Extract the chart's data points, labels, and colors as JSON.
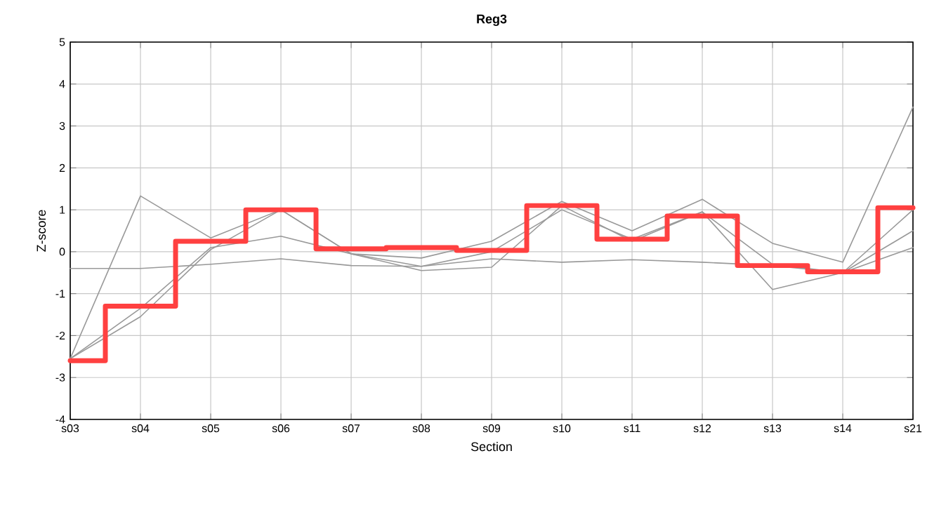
{
  "chart_data": {
    "type": "line",
    "title": "Reg3",
    "xlabel": "Section",
    "ylabel": "Z-score",
    "categories": [
      "s03",
      "s04",
      "s05",
      "s06",
      "s07",
      "s08",
      "s09",
      "s10",
      "s11",
      "s12",
      "s13",
      "s14",
      "s21"
    ],
    "ylim": [
      -4,
      5
    ],
    "yticks": [
      -4,
      -3,
      -2,
      -1,
      0,
      1,
      2,
      3,
      4,
      5
    ],
    "grid": true,
    "series": [
      {
        "color": "#999999",
        "values": [
          -0.4,
          -0.4,
          -0.3,
          -0.17,
          -0.33,
          -0.35,
          -0.17,
          -0.25,
          -0.19,
          -0.25,
          -0.33,
          -0.5,
          0.1
        ]
      },
      {
        "color": "#999999",
        "values": [
          -2.55,
          1.33,
          0.33,
          1.0,
          -0.05,
          -0.15,
          0.25,
          1.2,
          0.5,
          1.25,
          0.2,
          -0.25,
          3.45
        ]
      },
      {
        "color": "#999999",
        "values": [
          -2.55,
          -1.55,
          0.05,
          1.0,
          -0.05,
          -0.45,
          -0.37,
          1.1,
          0.25,
          0.95,
          -0.9,
          -0.5,
          0.5
        ]
      },
      {
        "color": "#999999",
        "values": [
          -2.55,
          -1.35,
          0.1,
          0.37,
          -0.05,
          -0.35,
          0.0,
          1.0,
          0.3,
          0.95,
          -0.3,
          -0.5,
          1.0
        ]
      },
      {
        "type": "step",
        "color": "#ff4040",
        "values": [
          -2.6,
          -1.3,
          0.25,
          1.0,
          0.07,
          0.1,
          0.03,
          1.1,
          0.3,
          0.85,
          -0.33,
          -0.48,
          1.05
        ]
      }
    ]
  }
}
